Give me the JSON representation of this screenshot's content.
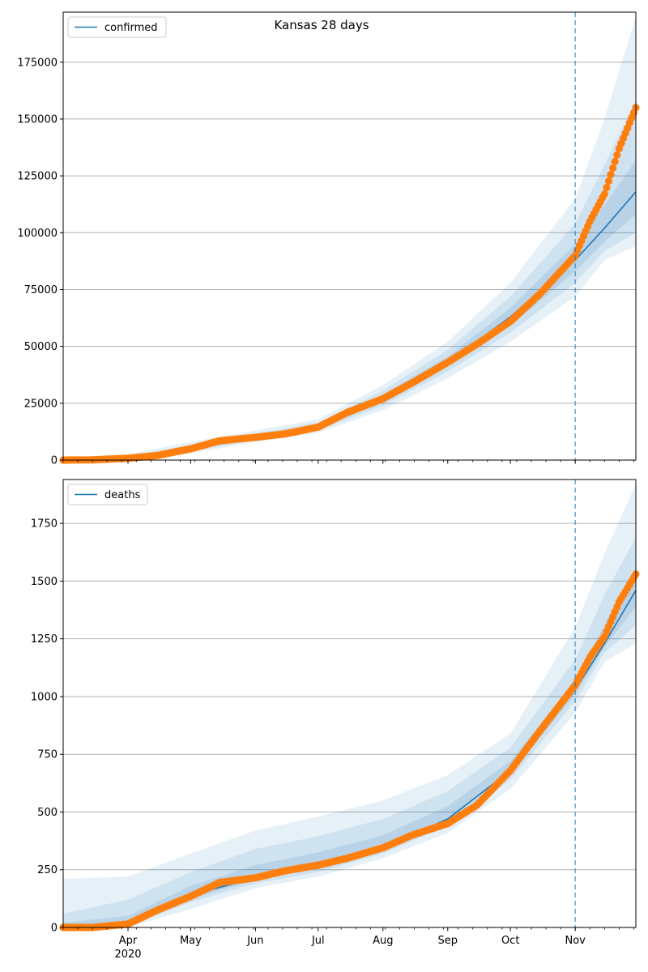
{
  "figure_title": "Kansas 28 days",
  "chart_data": [
    {
      "type": "line",
      "legend": [
        "confirmed"
      ],
      "legend_position": "top-left",
      "grid": "horizontal",
      "ylim": [
        0,
        197000
      ],
      "yticks": [
        0,
        25000,
        50000,
        75000,
        100000,
        125000,
        150000,
        175000
      ],
      "forecast_start": "2020-11-01",
      "line_color": "#1f77b4",
      "point_color": "#ff7f0e",
      "observed": {
        "dates": [
          "2020-03-01",
          "2020-03-15",
          "2020-04-01",
          "2020-04-15",
          "2020-05-01",
          "2020-05-15",
          "2020-06-01",
          "2020-06-15",
          "2020-07-01",
          "2020-07-15",
          "2020-08-01",
          "2020-08-15",
          "2020-09-01",
          "2020-09-15",
          "2020-10-01",
          "2020-10-15",
          "2020-11-01",
          "2020-11-08",
          "2020-11-15",
          "2020-11-22",
          "2020-11-30"
        ],
        "values": [
          0,
          100,
          800,
          2000,
          5000,
          8500,
          10000,
          11500,
          14500,
          21000,
          27000,
          34000,
          43000,
          51000,
          61000,
          73000,
          90000,
          105000,
          117000,
          137000,
          155000
        ]
      },
      "model": {
        "dates": [
          "2020-03-01",
          "2020-04-01",
          "2020-05-01",
          "2020-06-01",
          "2020-07-01",
          "2020-08-01",
          "2020-09-01",
          "2020-10-01",
          "2020-11-01",
          "2020-11-15",
          "2020-11-30"
        ],
        "values": [
          0,
          800,
          5000,
          10000,
          14500,
          27000,
          43000,
          63000,
          88000,
          102000,
          118000
        ]
      },
      "bands": [
        {
          "lower": [
            0,
            0,
            3000,
            8000,
            12000,
            22000,
            36000,
            52000,
            72000,
            88000,
            94000
          ],
          "upper": [
            1000,
            2500,
            8000,
            13000,
            18000,
            33000,
            52000,
            78000,
            115000,
            150000,
            195000
          ]
        },
        {
          "lower": [
            0,
            200,
            3800,
            8800,
            13000,
            24000,
            39000,
            56000,
            78000,
            92000,
            100000
          ],
          "upper": [
            600,
            1800,
            6600,
            11600,
            16500,
            30500,
            48500,
            72000,
            104000,
            130000,
            158000
          ]
        },
        {
          "lower": [
            0,
            500,
            4400,
            9400,
            13800,
            25500,
            41000,
            59000,
            83000,
            96000,
            108000
          ],
          "upper": [
            300,
            1200,
            5700,
            10700,
            15300,
            28700,
            45500,
            67000,
            95000,
            112000,
            132000
          ]
        }
      ]
    },
    {
      "type": "line",
      "legend": [
        "deaths"
      ],
      "legend_position": "top-left",
      "grid": "horizontal",
      "ylim": [
        0,
        1940
      ],
      "yticks": [
        0,
        250,
        500,
        750,
        1000,
        1250,
        1500,
        1750
      ],
      "forecast_start": "2020-11-01",
      "line_color": "#1f77b4",
      "point_color": "#ff7f0e",
      "observed": {
        "dates": [
          "2020-03-01",
          "2020-03-15",
          "2020-04-01",
          "2020-04-15",
          "2020-05-01",
          "2020-05-15",
          "2020-06-01",
          "2020-06-15",
          "2020-07-01",
          "2020-07-15",
          "2020-08-01",
          "2020-08-15",
          "2020-09-01",
          "2020-09-15",
          "2020-10-01",
          "2020-10-15",
          "2020-11-01",
          "2020-11-08",
          "2020-11-15",
          "2020-11-22",
          "2020-11-30"
        ],
        "values": [
          0,
          0,
          15,
          75,
          135,
          195,
          215,
          245,
          270,
          300,
          345,
          400,
          450,
          530,
          680,
          850,
          1050,
          1170,
          1260,
          1410,
          1530
        ]
      },
      "model": {
        "dates": [
          "2020-03-01",
          "2020-04-01",
          "2020-05-01",
          "2020-06-01",
          "2020-07-01",
          "2020-08-01",
          "2020-09-01",
          "2020-10-01",
          "2020-11-01",
          "2020-11-15",
          "2020-11-30"
        ],
        "values": [
          0,
          20,
          140,
          215,
          265,
          345,
          470,
          680,
          1030,
          1230,
          1460
        ]
      },
      "bands": [
        {
          "lower": [
            0,
            0,
            80,
            170,
            220,
            300,
            410,
            600,
            930,
            1150,
            1230
          ],
          "upper": [
            210,
            220,
            320,
            420,
            480,
            550,
            660,
            840,
            1300,
            1620,
            1920
          ]
        },
        {
          "lower": [
            0,
            5,
            110,
            190,
            240,
            320,
            440,
            640,
            980,
            1190,
            1310
          ],
          "upper": [
            60,
            120,
            240,
            340,
            395,
            470,
            590,
            780,
            1160,
            1440,
            1690
          ]
        },
        {
          "lower": [
            0,
            12,
            125,
            205,
            255,
            335,
            460,
            665,
            1010,
            1215,
            1390
          ],
          "upper": [
            20,
            50,
            180,
            270,
            325,
            400,
            525,
            720,
            1070,
            1310,
            1550
          ]
        }
      ]
    }
  ],
  "x_axis": {
    "months": [
      {
        "date": "2020-04-01",
        "label": "Apr",
        "sublabel": "2020"
      },
      {
        "date": "2020-05-01",
        "label": "May",
        "sublabel": ""
      },
      {
        "date": "2020-06-01",
        "label": "Jun",
        "sublabel": ""
      },
      {
        "date": "2020-07-01",
        "label": "Jul",
        "sublabel": ""
      },
      {
        "date": "2020-08-01",
        "label": "Aug",
        "sublabel": ""
      },
      {
        "date": "2020-09-01",
        "label": "Sep",
        "sublabel": ""
      },
      {
        "date": "2020-10-01",
        "label": "Oct",
        "sublabel": ""
      },
      {
        "date": "2020-11-01",
        "label": "Nov",
        "sublabel": ""
      }
    ],
    "xlim": [
      "2020-03-01",
      "2020-11-30"
    ]
  }
}
